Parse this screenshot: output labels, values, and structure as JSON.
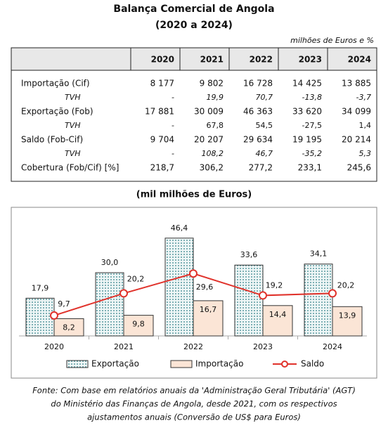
{
  "header": {
    "title": "Balança Comercial de Angola",
    "subtitle": "(2020 a 2024)",
    "units": "milhões de Euros e %"
  },
  "table": {
    "columns": [
      "2020",
      "2021",
      "2022",
      "2023",
      "2024"
    ],
    "rows": [
      [
        "Importação (Cif)",
        "8 177",
        "9 802",
        "16 728",
        "14 425",
        "13 885"
      ],
      [
        "TVH",
        "-",
        "19,9",
        "70,7",
        "-13,8",
        "-3,7"
      ],
      [
        "Exportação (Fob)",
        "17 881",
        "30 009",
        "46 363",
        "33 620",
        "34 099"
      ],
      [
        "TVH",
        "-",
        "67,8",
        "54,5",
        "-27,5",
        "1,4"
      ],
      [
        "Saldo (Fob-Cif)",
        "9 704",
        "20 207",
        "29 634",
        "19 195",
        "20 214"
      ],
      [
        "TVH",
        "-",
        "108,2",
        "46,7",
        "-35,2",
        "5,3"
      ],
      [
        "Cobertura (Fob/Cif) [%]",
        "218,7",
        "306,2",
        "277,2",
        "233,1",
        "245,6"
      ]
    ]
  },
  "chart_data": {
    "type": "bar",
    "title": "(mil milhões de Euros)",
    "categories": [
      "2020",
      "2021",
      "2022",
      "2023",
      "2024"
    ],
    "series": [
      {
        "name": "Exportação",
        "type": "bar",
        "color": "#2e7f86",
        "values": [
          17.9,
          30.0,
          46.4,
          33.6,
          34.1
        ],
        "value_labels": [
          "17,9",
          "30,0",
          "46,4",
          "33,6",
          "34,1"
        ]
      },
      {
        "name": "Importação",
        "type": "bar",
        "color": "#fbe5d6",
        "values": [
          8.2,
          9.8,
          16.7,
          14.4,
          13.9
        ],
        "value_labels": [
          "8,2",
          "9,8",
          "16,7",
          "14,4",
          "13,9"
        ]
      },
      {
        "name": "Saldo",
        "type": "line",
        "color": "#e0322b",
        "values": [
          9.7,
          20.2,
          29.6,
          19.2,
          20.2
        ],
        "value_labels": [
          "9,7",
          "20,2",
          "29,6",
          "19,2",
          "20,2"
        ]
      }
    ]
  },
  "footnote": [
    "Fonte: Com base em relatórios anuais da 'Administração Geral Tributária' (AGT)",
    "do Ministério das Finanças de Angola, desde 2021, com os respectivos",
    "ajustamentos anuais (Conversão de US$ para Euros)"
  ]
}
